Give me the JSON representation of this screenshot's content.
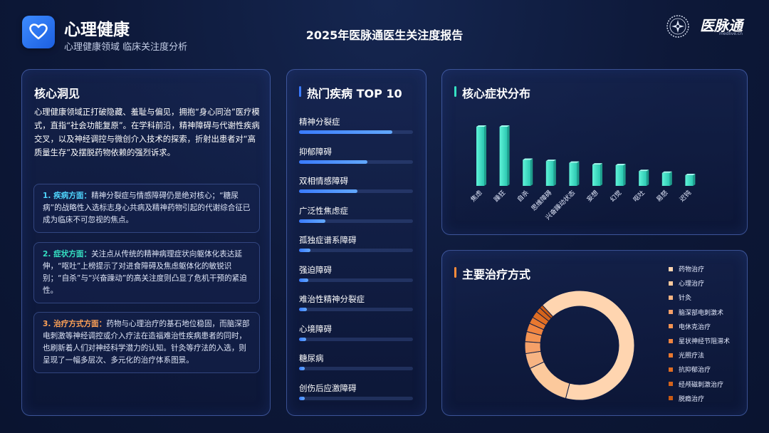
{
  "header": {
    "title": "心理健康",
    "subtitle": "心理健康领域 临床关注度分析",
    "report_title": "2025年医脉通医生关注度报告",
    "logo_text": "医脉通",
    "logo_sub": "medlive.cn"
  },
  "insights": {
    "title": "核心洞见",
    "intro": "心理健康领域正打破隐藏、羞耻与偏见，拥抱“身心同治”医疗模式，直指“社会功能复原”。在学科前沿，精神障碍与代谢性疾病交叉，以及神经调控与微创介入技术的探索，折射出患者对“高质量生存”及摆脱药物依赖的强烈诉求。",
    "items": [
      {
        "heading": "1. 疾病方面：",
        "body": "精神分裂症与情感障碍仍是绝对核心；“糖尿病”的战略性入选标志身心共病及精神药物引起的代谢综合征已成为临床不可忽视的焦点。",
        "color": "#4fd6ff"
      },
      {
        "heading": "2. 症状方面：",
        "body": "关注点从传统的精神病理症状向躯体化表达延伸，“呕吐”上榜提示了对进食障碍及焦虑躯体化的敏锐识别；“自杀”与“兴奋躁动”的高关注度则凸显了危机干预的紧迫性。",
        "color": "#35e0c2"
      },
      {
        "heading": "3. 治疗方式方面：",
        "body": "药物与心理治疗的基石地位稳固，而脑深部电刺激等神经调控或介入疗法在造福难治性疾病患者的同时，也刷新着人们对神经科学潜力的认知。针灸等疗法的入选，则呈现了一幅多层次、多元化的治疗体系图景。",
        "color": "#ffa257"
      }
    ]
  },
  "colors": {
    "accent_blue": "#3a7bff",
    "accent_cyan": "#35e0c2",
    "accent_orange": "#ff8c3a"
  },
  "chart_data": [
    {
      "type": "bar",
      "orientation": "horizontal",
      "title": "热门疾病 TOP 10",
      "categories": [
        "精神分裂症",
        "抑郁障碍",
        "双相情感障碍",
        "广泛性焦虑症",
        "孤独症谱系障碍",
        "强迫障碍",
        "难治性精神分裂症",
        "心境障碍",
        "糖尿病",
        "创伤后应激障碍"
      ],
      "values": [
        82,
        60,
        51,
        23,
        10,
        8,
        7,
        6,
        5,
        5
      ],
      "xlim": [
        0,
        100
      ]
    },
    {
      "type": "bar",
      "title": "核心症状分布",
      "categories": [
        "焦虑",
        "躁狂",
        "自杀",
        "思维障碍",
        "兴奋躁动状态",
        "妄想",
        "幻觉",
        "呕吐",
        "易怒",
        "迟钝"
      ],
      "values": [
        100,
        100,
        44,
        42,
        39,
        36,
        35,
        25,
        22,
        18
      ],
      "ylim": [
        0,
        100
      ]
    },
    {
      "type": "pie",
      "donut": true,
      "title": "主要治疗方式",
      "categories": [
        "药物治疗",
        "心理治疗",
        "针灸",
        "脑深部电刺激术",
        "电休克治疗",
        "星状神经节阻滞术",
        "光照疗法",
        "抗抑郁治疗",
        "经颅磁刺激治疗",
        "脱瘾治疗"
      ],
      "values": [
        66,
        14,
        4.5,
        3.5,
        3,
        2.5,
        2,
        2,
        1.5,
        1
      ],
      "colors": [
        "#ffd5b0",
        "#fcc99c",
        "#f7b483",
        "#f5a068",
        "#f39352",
        "#ef8440",
        "#e8782f",
        "#df6d23",
        "#d3631b",
        "#c85a14"
      ]
    }
  ]
}
